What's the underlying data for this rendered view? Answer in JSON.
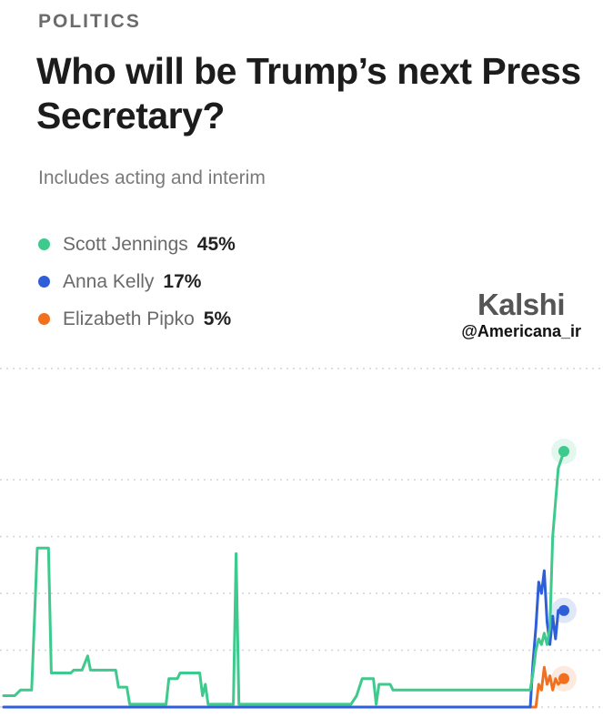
{
  "header": {
    "category": "POLITICS",
    "title": "Who will be Trump’s next Press Secretary?",
    "subtitle": "Includes acting and interim"
  },
  "legend": [
    {
      "name": "Scott Jennings",
      "pct": "45%",
      "color": "#3ec98d"
    },
    {
      "name": "Anna Kelly",
      "pct": "17%",
      "color": "#2e5fd8"
    },
    {
      "name": "Elizabeth Pipko",
      "pct": "5%",
      "color": "#f07020"
    }
  ],
  "brand": {
    "name": "Kalshi",
    "watermark": "@Americana_ir"
  },
  "chart_data": {
    "type": "line",
    "title": "",
    "xlabel": "",
    "ylabel": "",
    "ylim": [
      0,
      45
    ],
    "grid": true,
    "gridlines": [
      0,
      10,
      20,
      30,
      40
    ],
    "series": [
      {
        "name": "Scott Jennings",
        "color": "#3ec98d",
        "points": [
          [
            0,
            2
          ],
          [
            2,
            2
          ],
          [
            3,
            3
          ],
          [
            5,
            3
          ],
          [
            6,
            28
          ],
          [
            8,
            28
          ],
          [
            8.5,
            6
          ],
          [
            12,
            6
          ],
          [
            12.5,
            6.5
          ],
          [
            14,
            6.5
          ],
          [
            15,
            9
          ],
          [
            15.5,
            6.5
          ],
          [
            20,
            6.5
          ],
          [
            20.5,
            3.5
          ],
          [
            22,
            3.5
          ],
          [
            22.5,
            0.5
          ],
          [
            29,
            0.5
          ],
          [
            29.5,
            5
          ],
          [
            31,
            5
          ],
          [
            31.5,
            6
          ],
          [
            35,
            6
          ],
          [
            35.5,
            2
          ],
          [
            36,
            4
          ],
          [
            36.5,
            0.5
          ],
          [
            41,
            0.5
          ],
          [
            41.5,
            27
          ],
          [
            42,
            0.5
          ],
          [
            62,
            0.5
          ],
          [
            63,
            2
          ],
          [
            64,
            5
          ],
          [
            66,
            5
          ],
          [
            66.5,
            0.5
          ],
          [
            67,
            4
          ],
          [
            69,
            4
          ],
          [
            69.5,
            3
          ],
          [
            94,
            3
          ],
          [
            94.5,
            6
          ],
          [
            95,
            10
          ],
          [
            95.5,
            12
          ],
          [
            96,
            11
          ],
          [
            96.5,
            13
          ],
          [
            97,
            11
          ],
          [
            97.5,
            14
          ],
          [
            98,
            30
          ],
          [
            99,
            42
          ],
          [
            100,
            45
          ]
        ]
      },
      {
        "name": "Anna Kelly",
        "color": "#2e5fd8",
        "points": [
          [
            0,
            0
          ],
          [
            94,
            0
          ],
          [
            94.5,
            8
          ],
          [
            95,
            14
          ],
          [
            95.5,
            22
          ],
          [
            96,
            20
          ],
          [
            96.5,
            24
          ],
          [
            97,
            15
          ],
          [
            97.5,
            11
          ],
          [
            98,
            16
          ],
          [
            98.5,
            12
          ],
          [
            99,
            17
          ],
          [
            100,
            17
          ]
        ]
      },
      {
        "name": "Elizabeth Pipko",
        "color": "#f07020",
        "points": [
          [
            0,
            0
          ],
          [
            95,
            0
          ],
          [
            95.5,
            4
          ],
          [
            96,
            3
          ],
          [
            96.5,
            7
          ],
          [
            97,
            4
          ],
          [
            97.5,
            5.5
          ],
          [
            98,
            3
          ],
          [
            98.5,
            5
          ],
          [
            99,
            4
          ],
          [
            100,
            5
          ]
        ]
      }
    ]
  }
}
